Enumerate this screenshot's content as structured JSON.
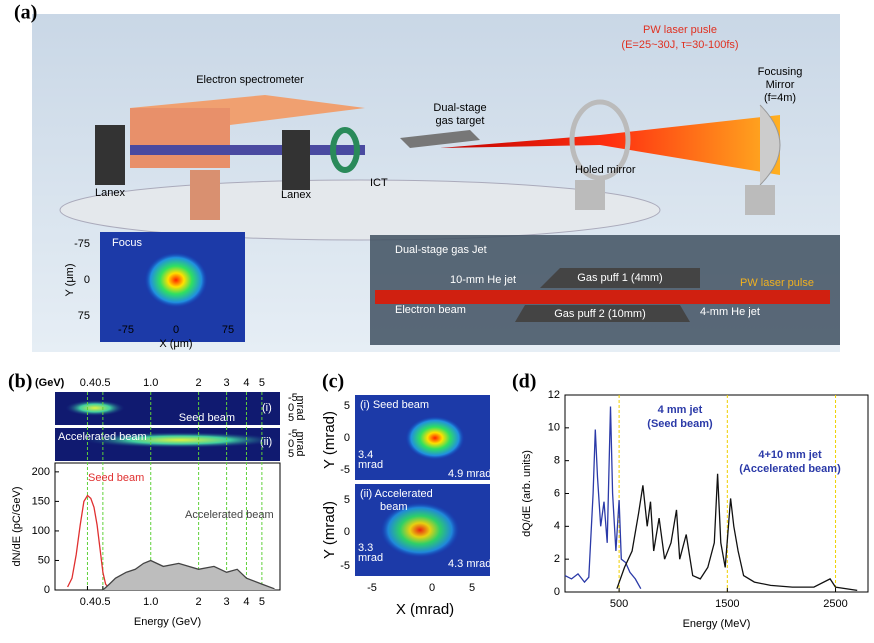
{
  "panels": {
    "a": {
      "label": "(a)",
      "laser": "PW laser pusle",
      "laser_params": "(E=25~30J, τ=30-100fs)",
      "spectrometer": "Electron spectrometer",
      "gas_target": [
        "Dual-stage",
        "gas target"
      ],
      "mirror": [
        "Focusing",
        "Mirror",
        "(f=4m)"
      ],
      "lanex_1": "Lanex",
      "lanex_2": "Lanex",
      "ict": "ICT",
      "holed_mirror": "Holed mirror",
      "focus": {
        "title": "Focus",
        "yticks": [
          -75,
          0,
          75
        ],
        "xticks": [
          -75,
          0,
          75
        ],
        "ylabel": "Y (μm)",
        "xlabel": "X (μm)"
      },
      "jet": {
        "title": "Dual-stage gas Jet",
        "he10": "10-mm He jet",
        "puff1": "Gas puff 1 (4mm)",
        "laser": "PW laser pulse",
        "electron": "Electron beam",
        "puff2": "Gas puff 2 (10mm)",
        "he4": "4-mm He jet"
      }
    },
    "b": {
      "label": "(b)",
      "type": "line",
      "unit": "(GeV)",
      "mrad_ticks": [
        -5,
        0,
        5
      ],
      "mrad_unit": "mrad",
      "seed_tag": "(i)",
      "accel_tag": "(ii)",
      "seed_image": "Seed beam",
      "accel_image": "Accelerated beam",
      "xlabel": "Energy (GeV)",
      "ylabel": "dN/dE (pC/GeV)",
      "log_x": true,
      "xlim": [
        0.25,
        6.5
      ],
      "ylim": [
        0,
        215
      ],
      "xticks": [
        0.4,
        0.5,
        {
          "value": 1,
          "label": "1.0"
        },
        2,
        3,
        4,
        5
      ],
      "yticks": [
        0,
        50,
        100,
        150,
        200
      ],
      "grid": "x",
      "grid_color": "#5fd03a",
      "series": [
        {
          "name": "Seed beam",
          "color": "#e03030",
          "x": [
            0.3,
            0.32,
            0.34,
            0.36,
            0.38,
            0.4,
            0.42,
            0.44,
            0.46,
            0.48,
            0.5,
            0.52,
            0.55
          ],
          "values": [
            5,
            20,
            60,
            110,
            150,
            160,
            155,
            140,
            110,
            70,
            30,
            10,
            2
          ]
        },
        {
          "name": "Accelerated beam",
          "color": "#444444",
          "fill": "#bdbdbd",
          "x": [
            0.5,
            0.55,
            0.6,
            0.7,
            0.8,
            0.9,
            1,
            1.2,
            1.5,
            2,
            2.5,
            3,
            3.5,
            4,
            5,
            6
          ],
          "values": [
            0,
            10,
            20,
            30,
            35,
            45,
            50,
            40,
            45,
            35,
            40,
            30,
            35,
            20,
            10,
            2
          ]
        }
      ]
    },
    "c": {
      "label": "(c)",
      "panel_i": "(i) Seed beam",
      "panel_ii": [
        "(ii) Accelerated",
        "beam"
      ],
      "div_i": [
        "3.4",
        "mrad"
      ],
      "width_i": "4.9 mrad",
      "div_ii": [
        "3.3",
        "mrad"
      ],
      "width_ii": "4.3 mrad",
      "xticks": [
        -5,
        0,
        5
      ],
      "yticks": [
        5,
        0,
        -5
      ],
      "xlabel": "X (mrad)",
      "ylabel": "Y (mrad)"
    },
    "d": {
      "label": "(d)",
      "type": "line",
      "xlabel": "Energy (MeV)",
      "ylabel": "dQ/dE (arb. units)",
      "log_x": false,
      "xlim": [
        0,
        2800
      ],
      "ylim": [
        0,
        12
      ],
      "xticks": [
        500,
        1500,
        2500
      ],
      "yticks": [
        0,
        2,
        4,
        6,
        8,
        10,
        12
      ],
      "grid": "x",
      "grid_color": "#f0d000",
      "series": [
        {
          "color": "#2b3aa8",
          "x": [
            0,
            60,
            120,
            180,
            220,
            260,
            280,
            300,
            330,
            360,
            390,
            420,
            440,
            470,
            500,
            520,
            560,
            600,
            650,
            700
          ],
          "values": [
            1,
            0.8,
            1.1,
            0.6,
            0.9,
            6,
            9.9,
            7,
            4,
            5.5,
            3,
            11.3,
            6,
            2.5,
            5.6,
            2,
            1.8,
            1.2,
            0.8,
            0.2
          ]
        },
        {
          "color": "#111111",
          "x": [
            480,
            550,
            620,
            680,
            720,
            760,
            790,
            820,
            870,
            920,
            980,
            1030,
            1060,
            1120,
            1180,
            1250,
            1320,
            1380,
            1410,
            1440,
            1480,
            1530,
            1560,
            1600,
            1650,
            1750,
            1900,
            2100,
            2300,
            2450,
            2500,
            2700
          ],
          "values": [
            0.2,
            1.5,
            2.5,
            4.8,
            6.5,
            4,
            5.5,
            2.5,
            4.5,
            2,
            3,
            5,
            2,
            3.5,
            1,
            0.8,
            1.5,
            3,
            7.2,
            3,
            1.5,
            5.7,
            4,
            2.5,
            1,
            0.6,
            0.4,
            0.3,
            0.3,
            0.8,
            0.3,
            0.1
          ]
        }
      ],
      "annotations": [
        {
          "lines": [
            "4 mm jet",
            "(Seed beam)"
          ],
          "color": "#2b3aa8"
        },
        {
          "lines": [
            "4+10 mm jet",
            "(Accelerated beam)"
          ],
          "color": "#2b3aa8"
        }
      ]
    }
  }
}
